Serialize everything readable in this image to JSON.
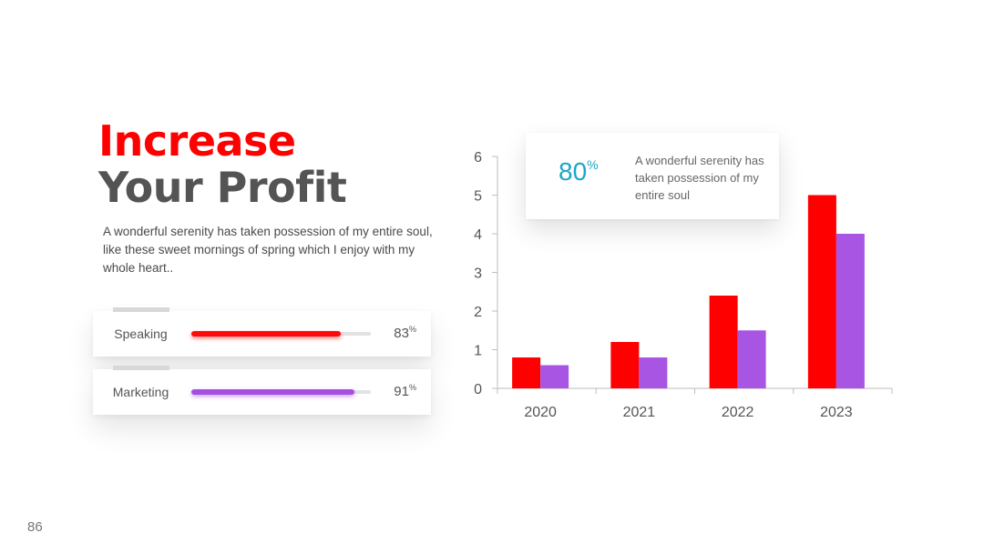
{
  "heading": {
    "line1": "Increase",
    "line2": "Your Profit"
  },
  "description": "A wonderful serenity has taken possession of my entire soul, like these sweet mornings of spring which I enjoy with my whole heart..",
  "skills": [
    {
      "label": "Speaking",
      "value": "83",
      "unit": "%",
      "level": 0.83,
      "color": "#ff0a0a"
    },
    {
      "label": "Marketing",
      "value": "91",
      "unit": "%",
      "level": 0.91,
      "color": "#a54fe2"
    }
  ],
  "stat": {
    "value": "80",
    "unit": "%",
    "text": "A wonderful serenity has taken possession of my entire soul"
  },
  "page_number": "86",
  "colors": {
    "accent": "#ff0000",
    "purple": "#a855e3",
    "stat": "#1ba5c9",
    "heading": "#545454"
  },
  "chart_data": {
    "type": "bar",
    "categories": [
      "2020",
      "2021",
      "2022",
      "2023"
    ],
    "series": [
      {
        "values": [
          0.8,
          1.2,
          2.4,
          5
        ],
        "color": "#ff0000"
      },
      {
        "values": [
          0.6,
          0.8,
          1.5,
          4
        ],
        "color": "#a855e3"
      }
    ],
    "ylim": [
      0,
      6
    ],
    "yticks": [
      "0",
      "1",
      "2",
      "3",
      "4",
      "5",
      "6"
    ],
    "grid": false,
    "xlabel": "",
    "ylabel": ""
  }
}
